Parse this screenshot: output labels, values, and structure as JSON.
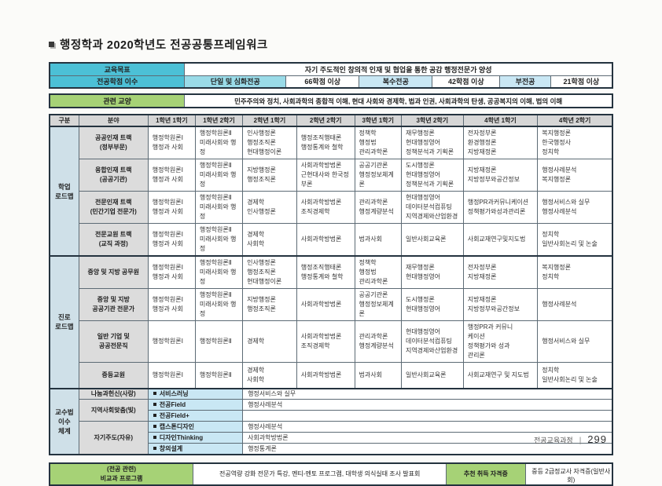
{
  "page": {
    "title": "행정학과 2020학년도 전공공통프레임워크",
    "footer": {
      "label": "전공교육과정",
      "separator": "|",
      "page_number": "299"
    }
  },
  "summary": {
    "goal_label": "교육목표",
    "goal_value": "자기 주도적인 창의적 인재 및 협업을 통한 공감 행정전문가 양성",
    "credits_label": "전공학점 이수",
    "credits": [
      {
        "type": "단일 및 심화전공",
        "value": "66학점 이상"
      },
      {
        "type": "복수전공",
        "value": "42학점 이상"
      },
      {
        "type": "부전공",
        "value": "21학점 이상"
      }
    ],
    "liberal_label": "관련 교양",
    "liberal_value": "민주주의와 정치, 사회과학의 종합적 이해, 현대 사회와 경제학, 법과 인권, 사회과학의 탄생, 공공복지의 이해, 법의 이해"
  },
  "curriculum": {
    "headers": [
      "구분",
      "분야",
      "1학년 1학기",
      "1학년 2학기",
      "2학년 1학기",
      "2학년 2학기",
      "3학년 1학기",
      "3학년 2학기",
      "4학년 1학기",
      "4학년 2학기"
    ],
    "sections": [
      {
        "group": "학업\n로드맵",
        "rows": [
          {
            "field": "공공인재 트랙\n(정부부문)",
            "cells": [
              "행정학원론Ⅰ\n행정과 사회",
              "행정학원론Ⅱ\n미래사회와 행정",
              "인사행정론\n행정조직론\n현대행정이론",
              "행정조직행태론\n행정통계와 철학",
              "정책학\n행정법\n관리과학론",
              "재무행정론\n현대행정영어\n정책분석과 기획론",
              "전자정부론\n환경행정론\n지방재정론",
              "복지행정론\n한국행정사\n정치학"
            ]
          },
          {
            "field": "융합인재 트랙\n(공공기관)",
            "cells": [
              "행정학원론Ⅰ\n행정과 사회",
              "행정학원론Ⅱ\n미래사회와 행정",
              "지방행정론\n행정조직론",
              "사회과학방법론\n근현대사와 한국정부론",
              "공공기관론\n행정정보체계론",
              "도시행정론\n현대행정영어\n정책분석과 기획론",
              "지방재정론\n지방정부와공간정보",
              "행정사례분석\n복지행정론"
            ]
          },
          {
            "field": "전문인재 트랙\n(민간기업 전문가)",
            "cells": [
              "행정학원론Ⅰ\n행정과 사회",
              "행정학원론Ⅱ\n미래사회와 행정",
              "경제학\n인사행정론",
              "사회과학방법론\n조직경제학",
              "관리과학론\n행정계량분석",
              "현대행정영어\n데이터분석컴퓨팅\n지역경제와산업환경",
              "행정PR과커뮤니케이션\n정책평가와성과관리론",
              "행정서비스와 실무\n행정사례분석"
            ]
          },
          {
            "field": "전문교원 트랙\n(교직 과정)",
            "cells": [
              "행정학원론Ⅰ\n행정과 사회",
              "행정학원론Ⅱ\n미래사회와 행정",
              "경제학\n사회학",
              "사회과학방법론",
              "법과사회",
              "일반사회교육론",
              "사회교재연구및지도법",
              "정치학\n일반사회논리 및 논술"
            ]
          }
        ]
      },
      {
        "group": "진로\n로드맵",
        "rows": [
          {
            "field": "중앙 및 지방 공무원",
            "cells": [
              "행정학원론Ⅰ\n행정과 사회",
              "행정학원론Ⅱ\n미래사회와 행정",
              "인사행정론\n행정조직론\n현대행정이론",
              "행정조직행태론\n행정통계와 철학",
              "정책학\n행정법\n관리과학론",
              "재무행정론\n현대행정영어",
              "전자정부론\n지방재정론",
              "복지행정론\n정치학"
            ]
          },
          {
            "field": "중앙 및 지방\n공공기관 전문가",
            "cells": [
              "행정학원론Ⅰ\n행정과 사회",
              "행정학원론Ⅱ\n미래사회와 행정",
              "지방행정론\n행정조직론",
              "사회과학방법론",
              "공공기관론\n행정정보체계론",
              "도시행정론\n현대행정영어",
              "지방재정론\n지방정부와공간정보",
              "행정사례분석"
            ]
          },
          {
            "field": "일반 기업 및\n공공전문직",
            "cells": [
              "행정학원론Ⅰ",
              "행정학원론Ⅱ",
              "경제학",
              "사회과학방법론\n조직경제학",
              "관리과학론\n행정계량분석",
              "현대행정영어\n데이터분석컴퓨팅\n지역경제와산업환경",
              "행정PR과 커뮤니\n케이션\n정책평가와 성과\n관리론",
              "행정서비스와 실무"
            ]
          },
          {
            "field": "중등교원",
            "cells": [
              "행정학원론Ⅰ",
              "행정학원론Ⅱ",
              "경제학\n사회학",
              "사회과학방법론",
              "법과사회",
              "일반사회교육론",
              "사회교재연구 및 지도법",
              "정치학\n일반사회논리 및 논술"
            ]
          }
        ]
      }
    ]
  },
  "teaching": {
    "group": "교수법\n이수\n체계",
    "categories": [
      {
        "label": "나눔과헌신(사랑)",
        "span": 1
      },
      {
        "label": "지역사회맞춤(빛)",
        "span": 2
      },
      {
        "label": "자기주도(자유)",
        "span": 3
      }
    ],
    "rows": [
      {
        "method": "서비스러닝",
        "course": "행정서비스와 실무"
      },
      {
        "method": "전공Field",
        "course": "행정사례분석"
      },
      {
        "method": "전공Field+",
        "course": ""
      },
      {
        "method": "캡스톤디자인",
        "course": "행정사례분석"
      },
      {
        "method": "디자인Thinking",
        "course": "사회과학방법론"
      },
      {
        "method": "창의설계",
        "course": "행정통계론"
      }
    ]
  },
  "extra": {
    "program_label": "(전공 관련)\n비교과 프로그램",
    "program_value": "전공역량 강화 전문가 특강, 멘티-멘토 프로그램, 대학생 의식실태 조사 발표회",
    "cert_label": "추천 취득 자격증",
    "cert_value": "중등 2급정교사 자격증(일반사회)"
  },
  "colors": {
    "header_cyan": "#4cc0d6",
    "light_cyan": "#9adbe8",
    "light_blue": "#c9e7f4",
    "green": "#a6d276",
    "header_gray": "#d6d6d6",
    "field_gray": "#dcdcdc",
    "group_bluegray": "#cfe0e8",
    "border_dark": "#24333f"
  }
}
